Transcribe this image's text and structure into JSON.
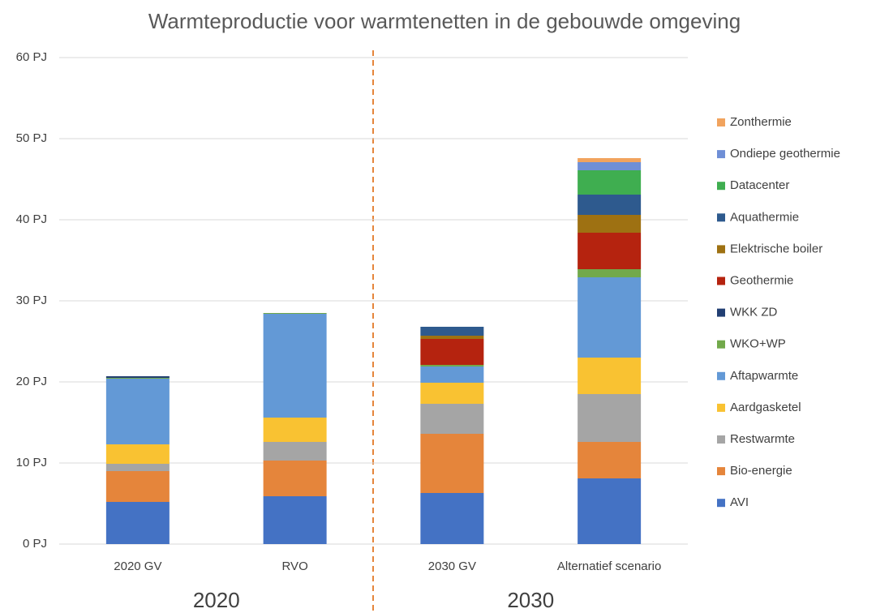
{
  "chart_data": {
    "type": "bar",
    "stacked": true,
    "title": "Warmteproductie voor warmtenetten in de gebouwde omgeving",
    "categories": [
      "2020 GV",
      "RVO",
      "2030 GV",
      "Alternatief scenario"
    ],
    "group_labels": [
      "2020",
      "2030"
    ],
    "ylim": [
      0,
      60
    ],
    "yticks": [
      {
        "value": 0,
        "label": "0 PJ"
      },
      {
        "value": 10,
        "label": "10 PJ"
      },
      {
        "value": 20,
        "label": "20 PJ"
      },
      {
        "value": 30,
        "label": "30 PJ"
      },
      {
        "value": 40,
        "label": "40 PJ"
      },
      {
        "value": 50,
        "label": "50 PJ"
      },
      {
        "value": 60,
        "label": "60 PJ"
      }
    ],
    "grid": true,
    "legend": "right",
    "series": [
      {
        "name": "AVI",
        "color": "#4472c4",
        "values": [
          5.2,
          5.9,
          6.3,
          8.1
        ]
      },
      {
        "name": "Bio-energie",
        "color": "#e5853b",
        "values": [
          3.8,
          4.4,
          7.3,
          4.5
        ]
      },
      {
        "name": "Restwarmte",
        "color": "#a5a5a5",
        "values": [
          0.9,
          2.3,
          3.7,
          5.9
        ]
      },
      {
        "name": "Aardgasketel",
        "color": "#f9c232",
        "values": [
          2.4,
          3.0,
          2.6,
          4.5
        ]
      },
      {
        "name": "Aftapwarmte",
        "color": "#6399d6",
        "values": [
          8.1,
          12.8,
          2.0,
          9.9
        ]
      },
      {
        "name": "WKO+WP",
        "color": "#72a94b",
        "values": [
          0.1,
          0.1,
          0.2,
          1.0
        ]
      },
      {
        "name": "WKK ZD",
        "color": "#223f73",
        "values": [
          0.2,
          0,
          0,
          0
        ]
      },
      {
        "name": "Geothermie",
        "color": "#b5230f",
        "values": [
          0,
          0,
          3.2,
          4.5
        ]
      },
      {
        "name": "Elektrische boiler",
        "color": "#9e7112",
        "values": [
          0,
          0,
          0.4,
          2.2
        ]
      },
      {
        "name": "Aquathermie",
        "color": "#2e5a8e",
        "values": [
          0,
          0,
          1.1,
          2.5
        ]
      },
      {
        "name": "Datacenter",
        "color": "#3fae50",
        "values": [
          0,
          0,
          0,
          3.0
        ]
      },
      {
        "name": "Ondiepe geothermie",
        "color": "#6f8fd6",
        "values": [
          0,
          0,
          0,
          1.0
        ]
      },
      {
        "name": "Zonthermie",
        "color": "#f1a35e",
        "values": [
          0,
          0,
          0,
          0.5
        ]
      }
    ]
  }
}
